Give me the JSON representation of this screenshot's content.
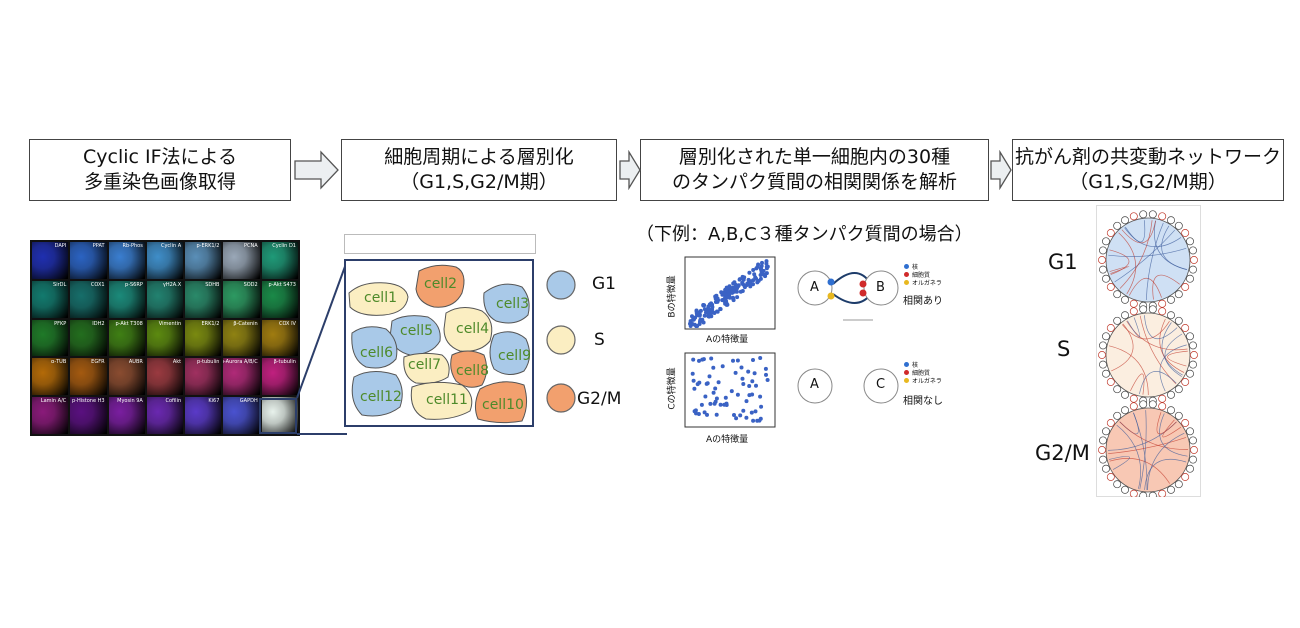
{
  "steps": [
    {
      "line1": "Cyclic IF法による",
      "line2": "多重染色画像取得"
    },
    {
      "line1": "細胞周期による層別化",
      "line2": "（G1,S,G2/M期）"
    },
    {
      "line1": "層別化された単一細胞内の30種",
      "line2": "のタンパク質間の相関関係を解析"
    },
    {
      "line1": "抗がん剤の共変動ネットワーク",
      "line2": "（G1,S,G2/M期）"
    }
  ],
  "mosaic": {
    "tiles": [
      {
        "label": "DAPI",
        "color": "#1f2fb0"
      },
      {
        "label": "PPAT",
        "color": "#2b63c2"
      },
      {
        "label": "Rb-Phos",
        "color": "#3a7ed0"
      },
      {
        "label": "Cyclin A",
        "color": "#3f8ec9"
      },
      {
        "label": "p-ERK1/2",
        "color": "#5a8fb8"
      },
      {
        "label": "PCNA",
        "color": "#9aa8b8"
      },
      {
        "label": "Cyclin D1",
        "color": "#1f9a78"
      },
      {
        "label": "SirDL",
        "color": "#127a6e"
      },
      {
        "label": "COX1",
        "color": "#166e6a"
      },
      {
        "label": "p-S6RP",
        "color": "#1b8a7a"
      },
      {
        "label": "γH2A.X",
        "color": "#228270"
      },
      {
        "label": "SDHB",
        "color": "#2a8a6a"
      },
      {
        "label": "SOD2",
        "color": "#2d9a62"
      },
      {
        "label": "p-Akt S473",
        "color": "#1a8a48"
      },
      {
        "label": "PFKP",
        "color": "#1f7a28"
      },
      {
        "label": "IDH2",
        "color": "#236e1e"
      },
      {
        "label": "p-Akt T308",
        "color": "#3f7f14"
      },
      {
        "label": "Vimentin",
        "color": "#5c8a10"
      },
      {
        "label": "ERK1/2",
        "color": "#7a8a10"
      },
      {
        "label": "β-Catenin",
        "color": "#8f8212"
      },
      {
        "label": "COX IV",
        "color": "#a07c10"
      },
      {
        "label": "α-TUB",
        "color": "#b36a08"
      },
      {
        "label": "EGFR",
        "color": "#a45a10"
      },
      {
        "label": "AUBR",
        "color": "#8a4c30"
      },
      {
        "label": "Akt",
        "color": "#9a3a40"
      },
      {
        "label": "p-tubulin",
        "color": "#a03060"
      },
      {
        "label": "p-Aurora A/B/C",
        "color": "#b02a78"
      },
      {
        "label": "β-tubulin",
        "color": "#c0207f"
      },
      {
        "label": "Lamin A/C",
        "color": "#8a1a7a"
      },
      {
        "label": "p-Histone H3",
        "color": "#5a1080"
      },
      {
        "label": "Myosin 9A",
        "color": "#7a1ea0"
      },
      {
        "label": "Cofilin",
        "color": "#6a28b0"
      },
      {
        "label": "Ki67",
        "color": "#5a3ac8"
      },
      {
        "label": "GAPDH",
        "color": "#4a52d0"
      },
      {
        "label": "",
        "color": "#e8f2ec"
      }
    ]
  },
  "cells": [
    {
      "label": "cell1",
      "phase": "S"
    },
    {
      "label": "cell2",
      "phase": "G2/M"
    },
    {
      "label": "cell3",
      "phase": "G1"
    },
    {
      "label": "cell4",
      "phase": "S"
    },
    {
      "label": "cell5",
      "phase": "G1"
    },
    {
      "label": "cell6",
      "phase": "G1"
    },
    {
      "label": "cell7",
      "phase": "S"
    },
    {
      "label": "cell8",
      "phase": "G2/M"
    },
    {
      "label": "cell9",
      "phase": "G1"
    },
    {
      "label": "cell10",
      "phase": "G2/M"
    },
    {
      "label": "cell11",
      "phase": "S"
    },
    {
      "label": "cell12",
      "phase": "G1"
    }
  ],
  "phase_legend": [
    {
      "label": "G1",
      "color": "#a9c9e8"
    },
    {
      "label": "S",
      "color": "#fbeec2"
    },
    {
      "label": "G2/M",
      "color": "#f2a06e"
    }
  ],
  "cell_label_color": "#4e8a2a",
  "example": {
    "title": "（下例：A,B,C３種タンパク質間の場合）",
    "plot1": {
      "ylabel": "Bの特徴量",
      "xlabel": "Aの特徴量"
    },
    "plot2": {
      "ylabel": "Cの特徴量",
      "xlabel": "Aの特徴量"
    },
    "graph1": {
      "node_a": "A",
      "node_b": "B",
      "status": "相関あり"
    },
    "graph2": {
      "node_a": "A",
      "node_b": "C",
      "status": "相関なし"
    },
    "node_legend": [
      {
        "label": "核",
        "color": "#2f6fd0"
      },
      {
        "label": "細胞質",
        "color": "#d02a2a"
      },
      {
        "label": "オルガネラ",
        "color": "#e8b820"
      }
    ]
  },
  "networks": {
    "labels": [
      "G1",
      "S",
      "G2/M"
    ],
    "tints": [
      "#cfe0f4",
      "#fbeee0",
      "#f8c8b4"
    ]
  }
}
